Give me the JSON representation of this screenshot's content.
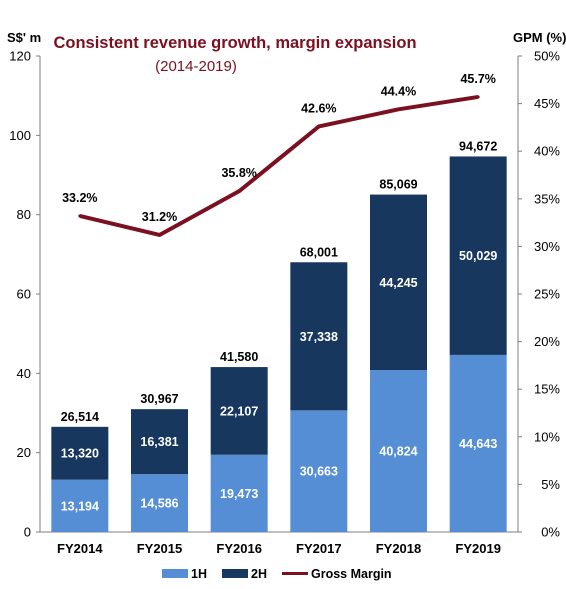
{
  "chart_data": {
    "type": "bar",
    "title": "Consistent revenue growth, margin expansion",
    "subtitle": "(2014-2019)",
    "ylabel": "S$' m",
    "y2label": "GPM (%)",
    "ylim": [
      0,
      120
    ],
    "yticks": [
      "0",
      "20",
      "40",
      "60",
      "80",
      "100",
      "120"
    ],
    "y2lim": [
      0,
      50
    ],
    "y2ticks": [
      "0%",
      "5%",
      "10%",
      "15%",
      "20%",
      "25%",
      "30%",
      "35%",
      "40%",
      "45%",
      "50%"
    ],
    "categories": [
      "FY2014",
      "FY2015",
      "FY2016",
      "FY2017",
      "FY2018",
      "FY2019"
    ],
    "series": [
      {
        "name": "1H",
        "kind": "stacked-bar",
        "color": "#558ed5",
        "values": [
          13194,
          14586,
          19473,
          30663,
          40824,
          44643
        ],
        "labels": [
          "13,194",
          "14,586",
          "19,473",
          "30,663",
          "40,824",
          "44,643"
        ]
      },
      {
        "name": "2H",
        "kind": "stacked-bar",
        "color": "#17375e",
        "values": [
          13320,
          16381,
          22107,
          37338,
          44245,
          50029
        ],
        "labels": [
          "13,320",
          "16,381",
          "22,107",
          "37,338",
          "44,245",
          "50,029"
        ]
      },
      {
        "name": "Gross Margin",
        "kind": "line",
        "axis": "right",
        "color": "#7b1020",
        "values": [
          33.2,
          31.2,
          35.8,
          42.6,
          44.4,
          45.7
        ],
        "labels": [
          "33.2%",
          "31.2%",
          "35.8%",
          "42.6%",
          "44.4%",
          "45.7%"
        ]
      }
    ],
    "totals": [
      "26,514",
      "30,967",
      "41,580",
      "68,001",
      "85,069",
      "94,672"
    ],
    "legend": {
      "placement": "bottom"
    },
    "grid": false,
    "colors": {
      "title": "#7b1020",
      "subtitle": "#7b1020",
      "axis": "#7f7f7f"
    }
  }
}
